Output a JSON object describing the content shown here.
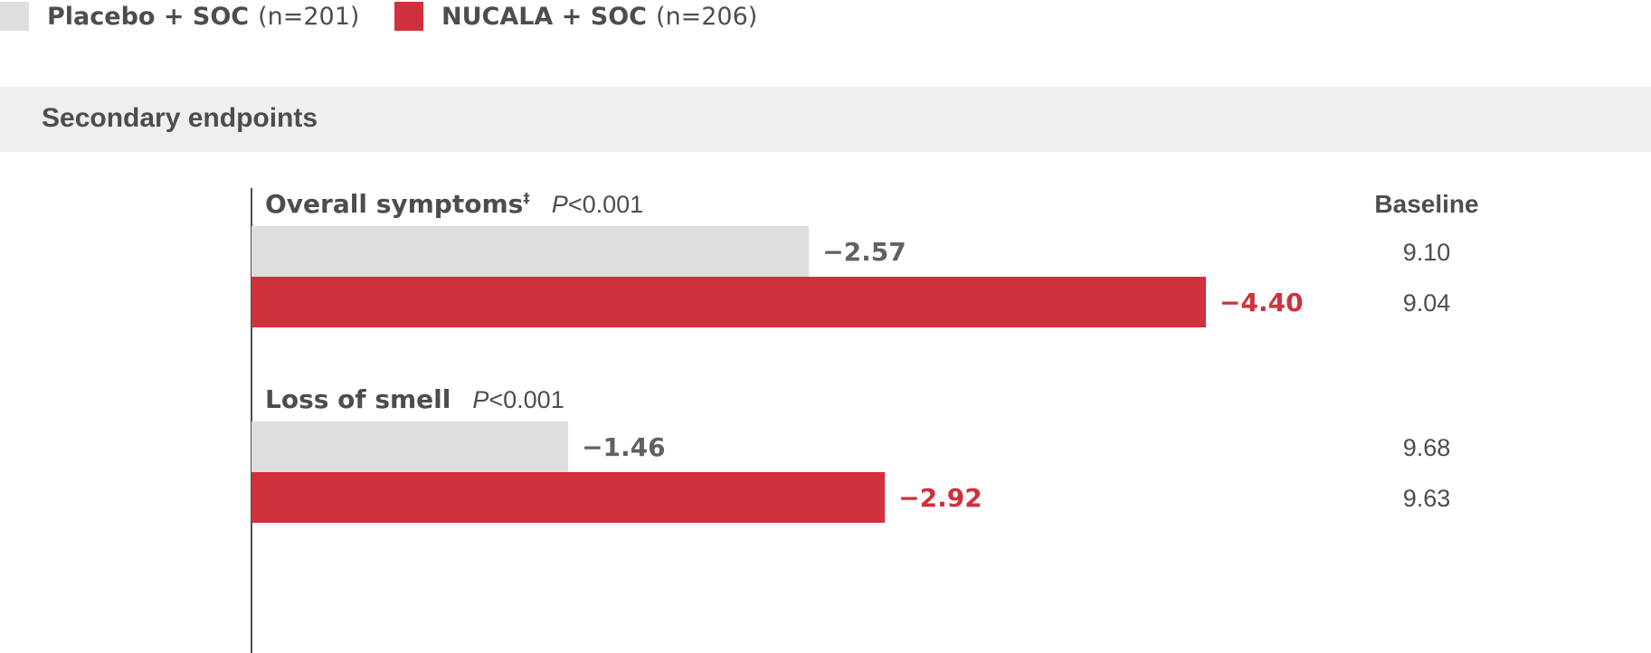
{
  "legend": {
    "placebo": {
      "name": "Placebo + SOC",
      "n": "(n=201)"
    },
    "nucala": {
      "name": "NUCALA + SOC",
      "n": "(n=206)"
    }
  },
  "section": {
    "title": "Secondary endpoints"
  },
  "colors": {
    "placebo": "#dfdedf",
    "nucala": "#d1313c",
    "placebo_text": "#616163",
    "nucala_text": "#d1313c",
    "axis": "#4d4d4f"
  },
  "chart_data": {
    "type": "bar",
    "orientation": "horizontal",
    "baseline_header": "Baseline",
    "xlim": [
      0,
      -5.5
    ],
    "grid": false,
    "legend_position": "top-left",
    "groups": [
      {
        "title": "Overall symptoms",
        "footnote": "‡",
        "p_prefix": "P",
        "p_text": "<0.001",
        "bars": [
          {
            "series": "Placebo + SOC",
            "value": -2.57,
            "label": "−2.57",
            "baseline": "9.10"
          },
          {
            "series": "NUCALA + SOC",
            "value": -4.4,
            "label": "−4.40",
            "baseline": "9.04"
          }
        ]
      },
      {
        "title": "Loss of smell",
        "footnote": "",
        "p_prefix": "P",
        "p_text": "<0.001",
        "bars": [
          {
            "series": "Placebo + SOC",
            "value": -1.46,
            "label": "−1.46",
            "baseline": "9.68"
          },
          {
            "series": "NUCALA + SOC",
            "value": -2.92,
            "label": "−2.92",
            "baseline": "9.63"
          }
        ]
      }
    ]
  }
}
